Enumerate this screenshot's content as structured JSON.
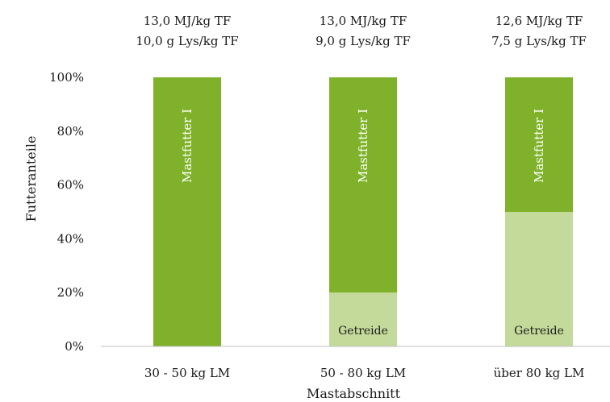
{
  "chart_data": {
    "type": "bar",
    "stacked": true,
    "categories": [
      "30 - 50 kg LM",
      "50 - 80 kg LM",
      "über  80 kg LM"
    ],
    "series": [
      {
        "name": "Getreide",
        "values": [
          0,
          20,
          50
        ],
        "color": "#c4da9a"
      },
      {
        "name": "Mastfutter I",
        "values": [
          100,
          80,
          50
        ],
        "color": "#7fb22a"
      }
    ],
    "top_annotations": [
      [
        "13,0 MJ/kg TF",
        "10,0 g Lys/kg TF"
      ],
      [
        "13,0 MJ/kg TF",
        "9,0 g Lys/kg TF"
      ],
      [
        "12,6 MJ/kg TF",
        "7,5 g Lys/kg TF"
      ]
    ],
    "xlabel": "Mastabschnitt",
    "ylabel": "Futteranteile",
    "ylim": [
      0,
      100
    ],
    "yticks": [
      "0%",
      "20%",
      "40%",
      "60%",
      "80%",
      "100%"
    ],
    "grid": false,
    "legend": "none"
  }
}
